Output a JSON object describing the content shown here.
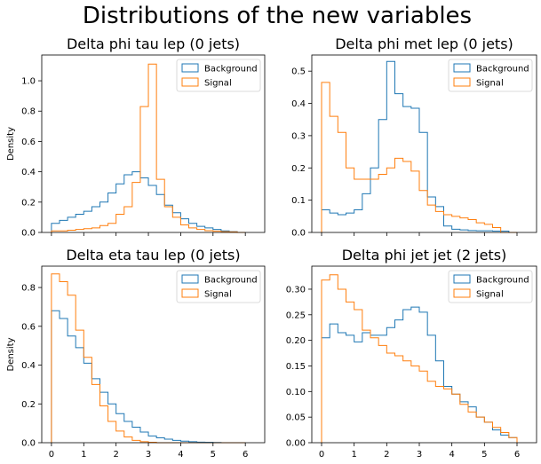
{
  "figure": {
    "suptitle": "Distributions of the new variables"
  },
  "colors": {
    "background": "#1f77b4",
    "signal": "#ff7f0e"
  },
  "chart_data": [
    {
      "type": "histogram-step",
      "title": "Delta phi tau lep (0 jets)",
      "ylabel": "Density",
      "xlabel": "",
      "bin_edges": [
        0,
        0.25,
        0.5,
        0.75,
        1.0,
        1.25,
        1.5,
        1.75,
        2.0,
        2.25,
        2.5,
        2.75,
        3.0,
        3.25,
        3.5,
        3.75,
        4.0,
        4.25,
        4.5,
        4.75,
        5.0,
        5.25,
        5.5,
        5.75,
        6.0
      ],
      "xlim": [
        -0.3,
        6.6
      ],
      "ylim": [
        0,
        1.17
      ],
      "xticks": [
        0,
        1,
        2,
        3,
        4,
        5,
        6
      ],
      "show_xticklabels": false,
      "yticks": [
        0.0,
        0.2,
        0.4,
        0.6,
        0.8,
        1.0
      ],
      "ytick_labels": [
        "0.0",
        "0.2",
        "0.4",
        "0.6",
        "0.8",
        "1.0"
      ],
      "legend": "top-right",
      "series": [
        {
          "name": "Background",
          "values": [
            0.06,
            0.08,
            0.1,
            0.12,
            0.14,
            0.17,
            0.2,
            0.26,
            0.32,
            0.38,
            0.4,
            0.36,
            0.31,
            0.25,
            0.18,
            0.13,
            0.09,
            0.06,
            0.04,
            0.03,
            0.02,
            0.01,
            0.005,
            0.0
          ]
        },
        {
          "name": "Signal",
          "values": [
            0.01,
            0.01,
            0.015,
            0.02,
            0.025,
            0.03,
            0.045,
            0.06,
            0.12,
            0.17,
            0.33,
            0.83,
            1.11,
            0.35,
            0.17,
            0.1,
            0.05,
            0.03,
            0.02,
            0.012,
            0.008,
            0.005,
            0.004,
            0.0
          ]
        }
      ]
    },
    {
      "type": "histogram-step",
      "title": "Delta phi met lep (0 jets)",
      "ylabel": "",
      "xlabel": "",
      "bin_edges": [
        0,
        0.25,
        0.5,
        0.75,
        1.0,
        1.25,
        1.5,
        1.75,
        2.0,
        2.25,
        2.5,
        2.75,
        3.0,
        3.25,
        3.5,
        3.75,
        4.0,
        4.25,
        4.5,
        4.75,
        5.0,
        5.25,
        5.5,
        5.75,
        6.0
      ],
      "xlim": [
        -0.3,
        6.6
      ],
      "ylim": [
        0,
        0.55
      ],
      "xticks": [
        0,
        1,
        2,
        3,
        4,
        5,
        6
      ],
      "show_xticklabels": false,
      "yticks": [
        0.0,
        0.1,
        0.2,
        0.3,
        0.4,
        0.5
      ],
      "ytick_labels": [
        "0.0",
        "0.1",
        "0.2",
        "0.3",
        "0.4",
        "0.5"
      ],
      "legend": "top-right",
      "series": [
        {
          "name": "Background",
          "values": [
            0.07,
            0.06,
            0.055,
            0.06,
            0.07,
            0.12,
            0.2,
            0.35,
            0.53,
            0.43,
            0.39,
            0.385,
            0.31,
            0.11,
            0.08,
            0.02,
            0.01,
            0.008,
            0.006,
            0.005,
            0.005,
            0.004,
            0.004,
            0.0
          ]
        },
        {
          "name": "Signal",
          "values": [
            0.465,
            0.36,
            0.31,
            0.2,
            0.165,
            0.165,
            0.165,
            0.18,
            0.2,
            0.23,
            0.22,
            0.19,
            0.13,
            0.085,
            0.065,
            0.055,
            0.05,
            0.045,
            0.04,
            0.03,
            0.025,
            0.015,
            0.0,
            0.0
          ]
        }
      ]
    },
    {
      "type": "histogram-step",
      "title": "Delta eta tau lep (0 jets)",
      "ylabel": "Density",
      "xlabel": "",
      "bin_edges": [
        0,
        0.25,
        0.5,
        0.75,
        1.0,
        1.25,
        1.5,
        1.75,
        2.0,
        2.25,
        2.5,
        2.75,
        3.0,
        3.25,
        3.5,
        3.75,
        4.0,
        4.25,
        4.5,
        4.75,
        5.0,
        5.25,
        5.5,
        5.75,
        6.0
      ],
      "xlim": [
        -0.3,
        6.6
      ],
      "ylim": [
        0,
        0.91
      ],
      "xticks": [
        0,
        1,
        2,
        3,
        4,
        5,
        6
      ],
      "xtick_labels": [
        "0",
        "1",
        "2",
        "3",
        "4",
        "5",
        "6"
      ],
      "show_xticklabels": true,
      "yticks": [
        0.0,
        0.2,
        0.4,
        0.6,
        0.8
      ],
      "ytick_labels": [
        "0.0",
        "0.2",
        "0.4",
        "0.6",
        "0.8"
      ],
      "legend": "top-right",
      "series": [
        {
          "name": "Background",
          "values": [
            0.68,
            0.64,
            0.55,
            0.49,
            0.41,
            0.33,
            0.26,
            0.2,
            0.15,
            0.11,
            0.08,
            0.055,
            0.035,
            0.025,
            0.018,
            0.012,
            0.008,
            0.005,
            0.003,
            0.002,
            0.001,
            0.0,
            0.0,
            0.0
          ]
        },
        {
          "name": "Signal",
          "values": [
            0.87,
            0.83,
            0.76,
            0.58,
            0.44,
            0.3,
            0.19,
            0.11,
            0.06,
            0.03,
            0.012,
            0.005,
            0.002,
            0.0,
            0.0,
            0.0,
            0.0,
            0.0,
            0.0,
            0.0,
            0.0,
            0.0,
            0.0,
            0.0
          ]
        }
      ]
    },
    {
      "type": "histogram-step",
      "title": "Delta phi jet jet (2 jets)",
      "ylabel": "",
      "xlabel": "",
      "bin_edges": [
        0,
        0.25,
        0.5,
        0.75,
        1.0,
        1.25,
        1.5,
        1.75,
        2.0,
        2.25,
        2.5,
        2.75,
        3.0,
        3.25,
        3.5,
        3.75,
        4.0,
        4.25,
        4.5,
        4.75,
        5.0,
        5.25,
        5.5,
        5.75,
        6.0
      ],
      "xlim": [
        -0.3,
        6.6
      ],
      "ylim": [
        0,
        0.345
      ],
      "xticks": [
        0,
        1,
        2,
        3,
        4,
        5,
        6
      ],
      "xtick_labels": [
        "0",
        "1",
        "2",
        "3",
        "4",
        "5",
        "6"
      ],
      "show_xticklabels": true,
      "yticks": [
        0.0,
        0.05,
        0.1,
        0.15,
        0.2,
        0.25,
        0.3
      ],
      "ytick_labels": [
        "0.00",
        "0.05",
        "0.10",
        "0.15",
        "0.20",
        "0.25",
        "0.30"
      ],
      "legend": "top-right",
      "series": [
        {
          "name": "Background",
          "values": [
            0.205,
            0.232,
            0.215,
            0.21,
            0.197,
            0.215,
            0.21,
            0.21,
            0.225,
            0.24,
            0.26,
            0.265,
            0.255,
            0.21,
            0.16,
            0.11,
            0.095,
            0.08,
            0.07,
            0.05,
            0.04,
            0.025,
            0.015,
            0.01
          ]
        },
        {
          "name": "Signal",
          "values": [
            0.318,
            0.328,
            0.3,
            0.275,
            0.26,
            0.22,
            0.205,
            0.19,
            0.175,
            0.17,
            0.16,
            0.15,
            0.14,
            0.12,
            0.11,
            0.105,
            0.095,
            0.075,
            0.06,
            0.05,
            0.04,
            0.03,
            0.02,
            0.01
          ]
        }
      ]
    }
  ]
}
